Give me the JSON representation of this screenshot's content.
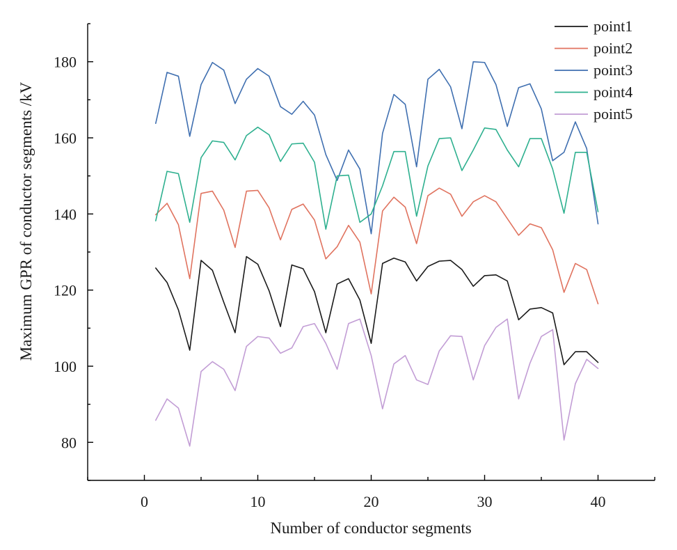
{
  "chart_data": {
    "type": "line",
    "title": "",
    "xlabel": "Number of conductor segments",
    "ylabel": "Maximum GPR of conductor segments /kV",
    "xlim": [
      -5,
      45
    ],
    "ylim": [
      70,
      190
    ],
    "x_ticks": [
      0,
      10,
      20,
      30,
      40
    ],
    "y_ticks": [
      80,
      100,
      120,
      140,
      160,
      180
    ],
    "grid": false,
    "legend_position": "top-right",
    "x": [
      1,
      2,
      3,
      4,
      5,
      6,
      7,
      8,
      9,
      10,
      11,
      12,
      13,
      14,
      15,
      16,
      17,
      18,
      19,
      20,
      21,
      22,
      23,
      24,
      25,
      26,
      27,
      28,
      29,
      30,
      31,
      32,
      33,
      34,
      35,
      36,
      37,
      38,
      39,
      40
    ],
    "series": [
      {
        "name": "point1",
        "color": "#1a1a1a",
        "values": [
          125.8,
          122.0,
          114.8,
          104.2,
          127.8,
          125.2,
          116.8,
          108.8,
          128.8,
          126.8,
          119.8,
          110.4,
          126.6,
          125.6,
          119.6,
          108.8,
          121.6,
          123.0,
          117.4,
          106.0,
          127.0,
          128.4,
          127.4,
          122.4,
          126.2,
          127.6,
          127.8,
          125.4,
          121.0,
          123.8,
          124.0,
          122.4,
          112.2,
          115.0,
          115.4,
          114.0,
          100.4,
          103.8,
          103.8,
          101.0
        ]
      },
      {
        "name": "point2",
        "color": "#e0735f",
        "values": [
          139.8,
          142.8,
          137.2,
          123.0,
          145.4,
          146.0,
          141.0,
          131.2,
          146.0,
          146.2,
          141.6,
          133.2,
          141.2,
          142.6,
          138.4,
          128.2,
          131.4,
          137.0,
          132.6,
          119.0,
          140.8,
          144.4,
          141.8,
          132.2,
          144.8,
          146.8,
          145.2,
          139.4,
          143.2,
          144.8,
          143.2,
          138.8,
          134.4,
          137.4,
          136.4,
          130.6,
          119.4,
          127.0,
          125.4,
          116.4
        ]
      },
      {
        "name": "point3",
        "color": "#3f6fb0",
        "values": [
          163.8,
          177.2,
          176.2,
          160.4,
          174.0,
          179.8,
          177.8,
          169.0,
          175.4,
          178.2,
          176.2,
          168.2,
          166.2,
          169.6,
          166.0,
          155.6,
          148.8,
          156.8,
          151.8,
          134.8,
          161.2,
          171.4,
          168.8,
          152.4,
          175.4,
          178.0,
          173.4,
          162.4,
          180.0,
          179.8,
          174.0,
          163.0,
          173.2,
          174.2,
          167.6,
          154.0,
          156.2,
          164.2,
          157.2,
          137.4
        ]
      },
      {
        "name": "point4",
        "color": "#2eb08f",
        "values": [
          138.2,
          151.2,
          150.6,
          137.8,
          154.8,
          159.2,
          158.8,
          154.2,
          160.6,
          162.8,
          160.8,
          153.8,
          158.4,
          158.6,
          153.6,
          136.0,
          150.0,
          150.2,
          137.8,
          140.0,
          147.4,
          156.4,
          156.4,
          139.4,
          152.6,
          159.8,
          160.0,
          151.4,
          156.8,
          162.6,
          162.2,
          156.8,
          152.4,
          159.8,
          159.8,
          151.8,
          140.2,
          156.2,
          156.2,
          140.6
        ]
      },
      {
        "name": "point5",
        "color": "#c29dd5",
        "values": [
          85.8,
          91.4,
          89.0,
          79.0,
          98.6,
          101.2,
          99.2,
          93.6,
          105.2,
          107.8,
          107.4,
          103.4,
          104.8,
          110.4,
          111.2,
          106.0,
          99.2,
          111.2,
          112.4,
          102.8,
          88.8,
          100.6,
          102.8,
          96.4,
          95.2,
          104.0,
          108.0,
          107.8,
          96.4,
          105.4,
          110.2,
          112.4,
          91.4,
          100.8,
          107.8,
          109.6,
          80.6,
          95.4,
          101.8,
          99.4
        ]
      }
    ]
  }
}
